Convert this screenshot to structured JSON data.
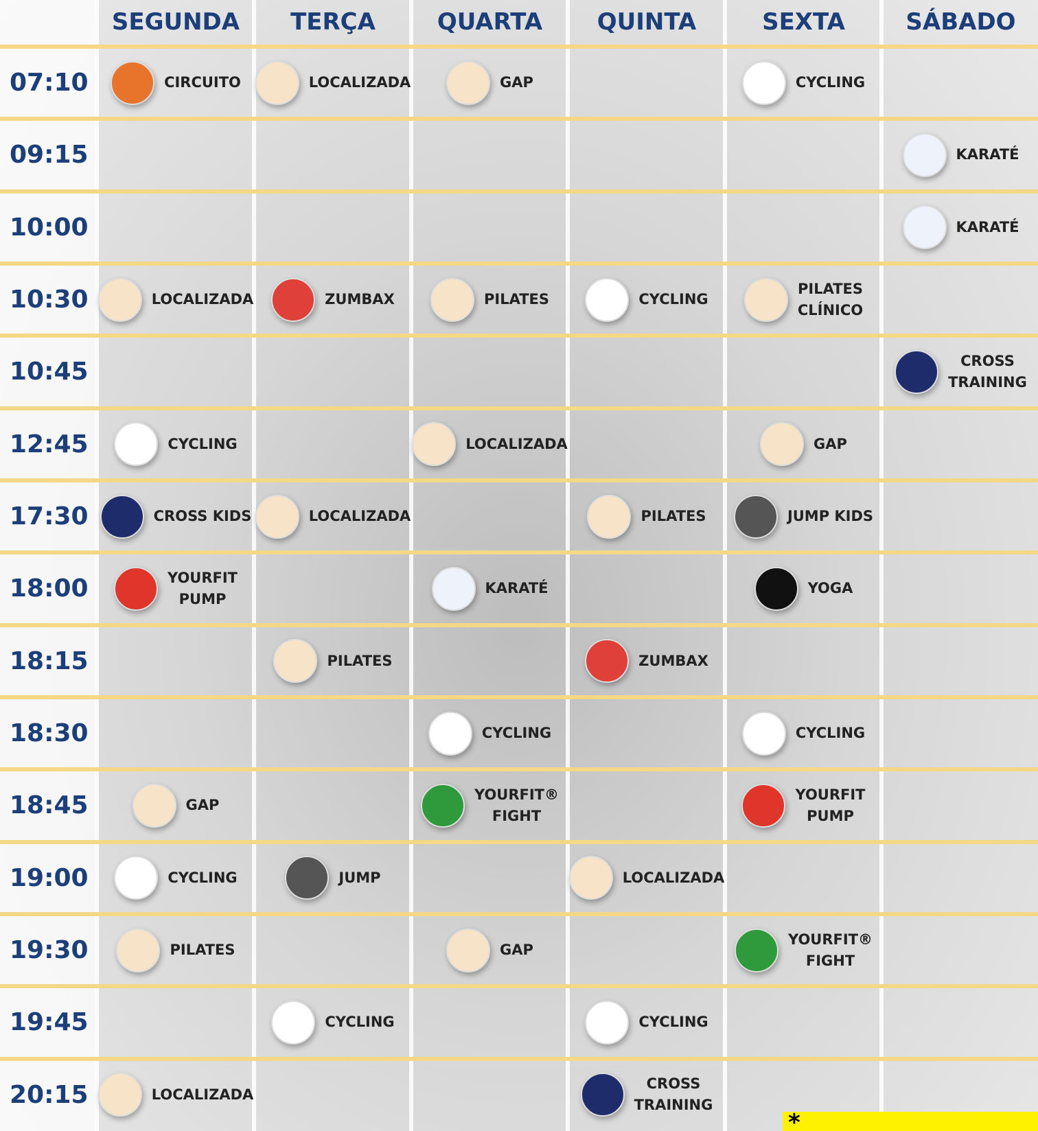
{
  "header": {
    "days": [
      "SEGUNDA",
      "TERÇA",
      "QUARTA",
      "QUINTA",
      "SEXTA",
      "SÁBADO"
    ]
  },
  "rows": [
    {
      "time": "07:10",
      "cells": [
        {
          "lines": [
            "CIRCUITO"
          ],
          "color": "#e8732a"
        },
        {
          "lines": [
            "LOCALIZADA"
          ],
          "color": "#f6e3c8"
        },
        {
          "lines": [
            "GAP"
          ],
          "color": "#f6e3c8"
        },
        null,
        {
          "lines": [
            "CYCLING"
          ],
          "color": "#ffffff"
        },
        null
      ]
    },
    {
      "time": "09:15",
      "cells": [
        null,
        null,
        null,
        null,
        null,
        {
          "lines": [
            "KARATÉ"
          ],
          "color": "#eef2fb"
        }
      ]
    },
    {
      "time": "10:00",
      "cells": [
        null,
        null,
        null,
        null,
        null,
        {
          "lines": [
            "KARATÉ"
          ],
          "color": "#eef2fb"
        }
      ]
    },
    {
      "time": "10:30",
      "cells": [
        {
          "lines": [
            "LOCALIZADA"
          ],
          "color": "#f6e3c8"
        },
        {
          "lines": [
            "ZUMBAX"
          ],
          "color": "#e0403a"
        },
        {
          "lines": [
            "PILATES"
          ],
          "color": "#f6e3c8"
        },
        {
          "lines": [
            "CYCLING"
          ],
          "color": "#ffffff"
        },
        {
          "lines": [
            "PILATES",
            "CLÍNICO"
          ],
          "color": "#f6e3c8"
        },
        null
      ]
    },
    {
      "time": "10:45",
      "cells": [
        null,
        null,
        null,
        null,
        null,
        {
          "lines": [
            "CROSS",
            "TRAINING"
          ],
          "color": "#1f2c6b"
        }
      ]
    },
    {
      "time": "12:45",
      "cells": [
        {
          "lines": [
            "CYCLING"
          ],
          "color": "#ffffff"
        },
        null,
        {
          "lines": [
            "LOCALIZADA"
          ],
          "color": "#f6e3c8"
        },
        null,
        {
          "lines": [
            "GAP"
          ],
          "color": "#f6e3c8"
        },
        null
      ]
    },
    {
      "time": "17:30",
      "cells": [
        {
          "lines": [
            "CROSS KIDS"
          ],
          "color": "#1f2c6b"
        },
        {
          "lines": [
            "LOCALIZADA"
          ],
          "color": "#f6e3c8"
        },
        null,
        {
          "lines": [
            "PILATES"
          ],
          "color": "#f6e3c8"
        },
        {
          "lines": [
            "JUMP KIDS"
          ],
          "color": "#555555"
        },
        null
      ]
    },
    {
      "time": "18:00",
      "cells": [
        {
          "lines": [
            "YOURFIT",
            "PUMP"
          ],
          "color": "#e0352b"
        },
        null,
        {
          "lines": [
            "KARATÉ"
          ],
          "color": "#eef2fb"
        },
        null,
        {
          "lines": [
            "YOGA"
          ],
          "color": "#111111"
        },
        null
      ]
    },
    {
      "time": "18:15",
      "cells": [
        null,
        {
          "lines": [
            "PILATES"
          ],
          "color": "#f6e3c8"
        },
        null,
        {
          "lines": [
            "ZUMBAX"
          ],
          "color": "#e0403a"
        },
        null,
        null
      ]
    },
    {
      "time": "18:30",
      "cells": [
        null,
        null,
        {
          "lines": [
            "CYCLING"
          ],
          "color": "#ffffff"
        },
        null,
        {
          "lines": [
            "CYCLING"
          ],
          "color": "#ffffff"
        },
        null
      ]
    },
    {
      "time": "18:45",
      "cells": [
        {
          "lines": [
            "GAP"
          ],
          "color": "#f6e3c8"
        },
        null,
        {
          "lines": [
            "YOURFIT®",
            "FIGHT"
          ],
          "color": "#2e9a3c"
        },
        null,
        {
          "lines": [
            "YOURFIT",
            "PUMP"
          ],
          "color": "#e0352b"
        },
        null
      ]
    },
    {
      "time": "19:00",
      "cells": [
        {
          "lines": [
            "CYCLING"
          ],
          "color": "#ffffff"
        },
        {
          "lines": [
            "JUMP"
          ],
          "color": "#555555"
        },
        null,
        {
          "lines": [
            "LOCALIZADA"
          ],
          "color": "#f6e3c8"
        },
        null,
        null
      ]
    },
    {
      "time": "19:30",
      "cells": [
        {
          "lines": [
            "PILATES"
          ],
          "color": "#f6e3c8"
        },
        null,
        {
          "lines": [
            "GAP"
          ],
          "color": "#f6e3c8"
        },
        null,
        {
          "lines": [
            "YOURFIT®",
            "FIGHT"
          ],
          "color": "#2e9a3c"
        },
        null
      ]
    },
    {
      "time": "19:45",
      "cells": [
        null,
        {
          "lines": [
            "CYCLING"
          ],
          "color": "#ffffff"
        },
        null,
        {
          "lines": [
            "CYCLING"
          ],
          "color": "#ffffff"
        },
        null,
        null
      ]
    },
    {
      "time": "20:15",
      "cells": [
        {
          "lines": [
            "LOCALIZADA"
          ],
          "color": "#f6e3c8"
        },
        null,
        null,
        {
          "lines": [
            "CROSS",
            "TRAINING"
          ],
          "color": "#1f2c6b"
        },
        null,
        null
      ]
    }
  ],
  "note": "*"
}
